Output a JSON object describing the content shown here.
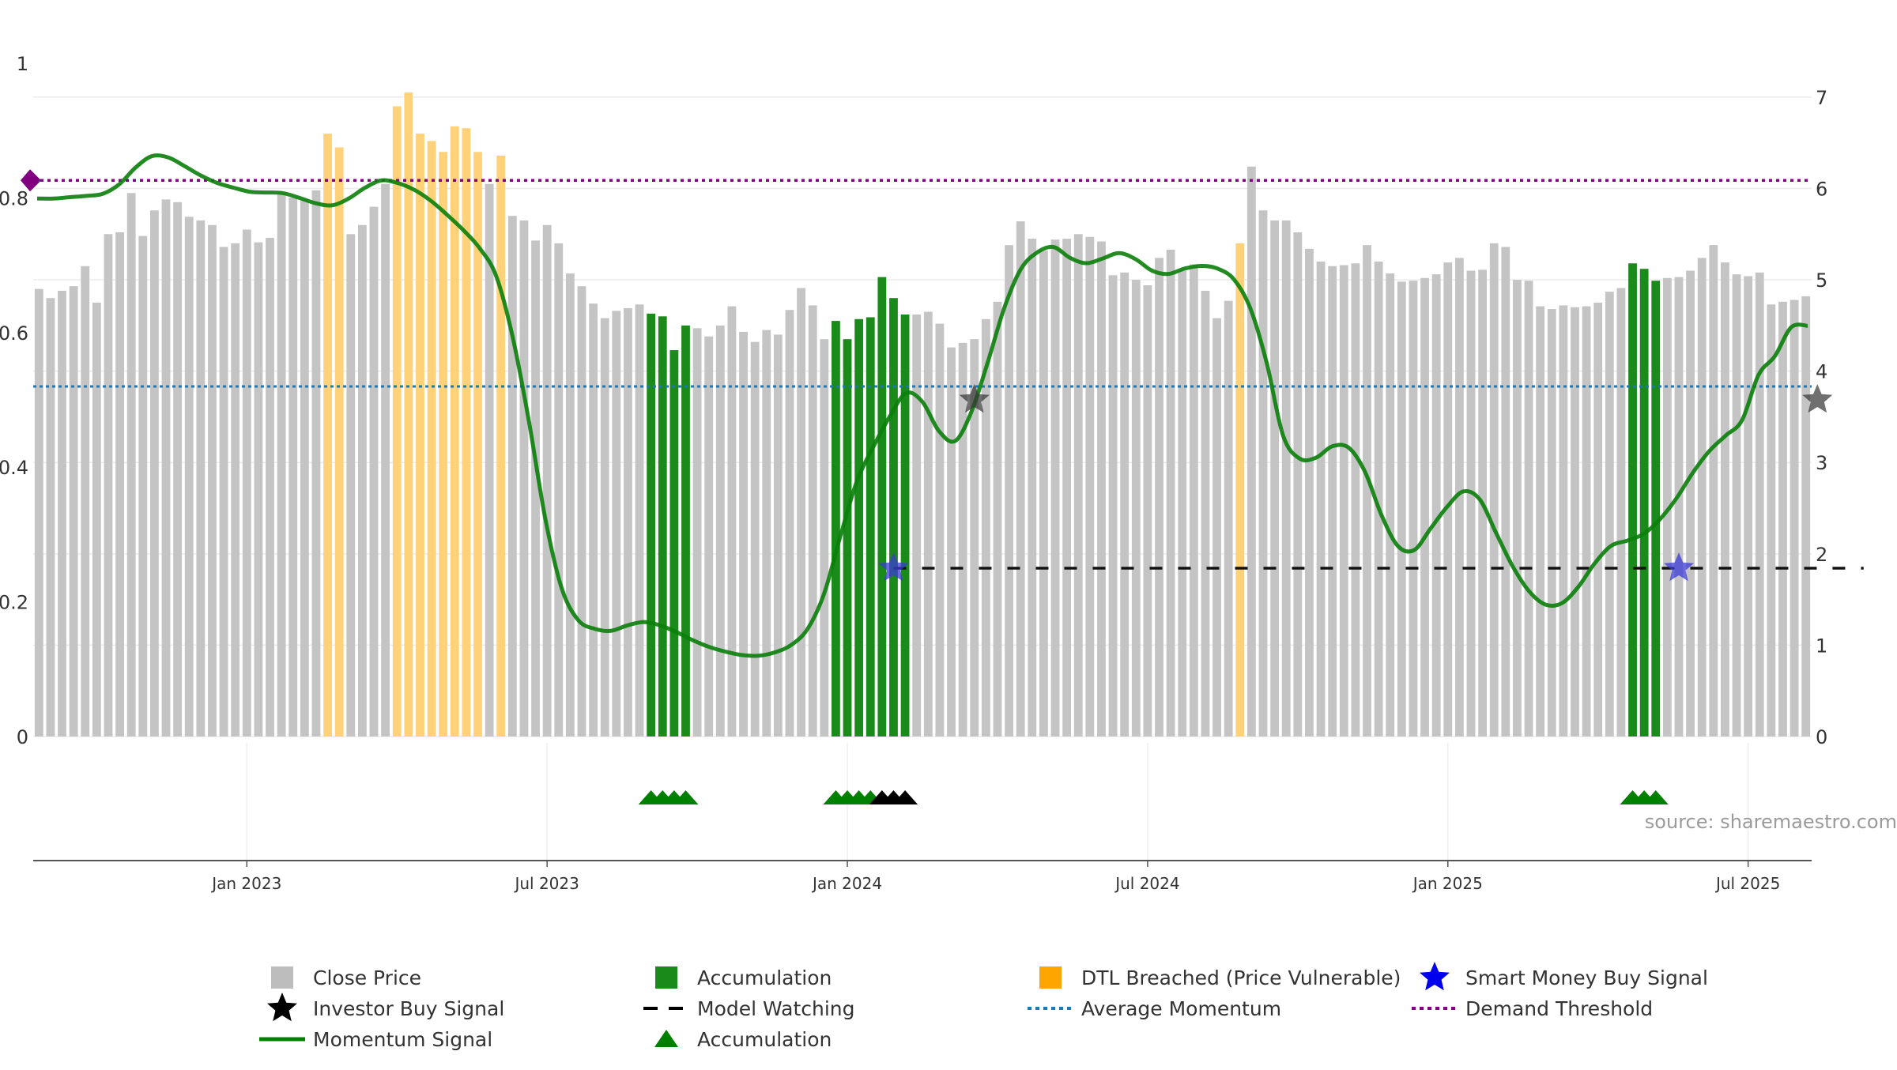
{
  "chart_data": {
    "type": "bar",
    "source": "source: sharemaestro.com",
    "left_axis": {
      "ticks": [
        0,
        0.2,
        0.4,
        0.6,
        0.8,
        1
      ],
      "tick_labels": [
        "0",
        "0.2",
        "0.4",
        "0.6",
        "0.8",
        "1"
      ],
      "ylim": [
        0,
        1
      ]
    },
    "right_axis": {
      "ticks": [
        0,
        1,
        2,
        3,
        4,
        5,
        6,
        7
      ],
      "tick_labels": [
        "0",
        "1",
        "2",
        "3",
        "4",
        "5",
        "6",
        "7"
      ],
      "ylim": [
        0,
        7.7
      ]
    },
    "x_ticks": [
      {
        "label": "Jan 2023",
        "index": 18
      },
      {
        "label": "Jul 2023",
        "index": 44
      },
      {
        "label": "Jan 2024",
        "index": 70
      },
      {
        "label": "Jul 2024",
        "index": 96
      },
      {
        "label": "Jan 2025",
        "index": 122
      },
      {
        "label": "Jul 2025",
        "index": 148
      }
    ],
    "close_price": [
      4.9,
      4.8,
      4.88,
      4.93,
      5.15,
      4.75,
      5.5,
      5.52,
      5.95,
      5.48,
      5.76,
      5.88,
      5.85,
      5.69,
      5.65,
      5.6,
      5.36,
      5.4,
      5.55,
      5.41,
      5.46,
      5.95,
      5.9,
      5.88,
      5.98,
      6.6,
      6.45,
      5.5,
      5.6,
      5.8,
      6.05,
      6.9,
      7.05,
      6.6,
      6.52,
      6.4,
      6.68,
      6.66,
      6.4,
      6.05,
      6.36,
      5.7,
      5.65,
      5.43,
      5.6,
      5.4,
      5.07,
      4.93,
      4.74,
      4.58,
      4.66,
      4.69,
      4.73,
      4.63,
      4.6,
      4.23,
      4.5,
      4.47,
      4.38,
      4.5,
      4.71,
      4.43,
      4.32,
      4.45,
      4.4,
      4.67,
      4.91,
      4.72,
      4.35,
      4.55,
      4.35,
      4.57,
      4.59,
      5.03,
      4.8,
      4.62,
      4.62,
      4.65,
      4.52,
      4.26,
      4.31,
      4.35,
      4.57,
      4.76,
      5.38,
      5.64,
      5.45,
      5.32,
      5.44,
      5.45,
      5.5,
      5.47,
      5.42,
      5.05,
      5.08,
      5.0,
      4.94,
      5.24,
      5.33,
      5.1,
      5.17,
      4.88,
      4.58,
      4.77,
      5.4,
      6.24,
      5.76,
      5.65,
      5.65,
      5.52,
      5.34,
      5.2,
      5.15,
      5.16,
      5.18,
      5.38,
      5.2,
      5.07,
      4.98,
      4.99,
      5.02,
      5.06,
      5.19,
      5.24,
      5.1,
      5.11,
      5.4,
      5.36,
      5.0,
      4.99,
      4.71,
      4.68,
      4.72,
      4.7,
      4.71,
      4.75,
      4.87,
      4.91,
      5.18,
      5.12,
      4.99,
      5.02,
      5.03,
      5.1,
      5.24,
      5.38,
      5.19,
      5.06,
      5.04,
      5.08,
      4.73,
      4.76,
      4.78,
      4.82
    ],
    "bar_category": [
      "p",
      "p",
      "p",
      "p",
      "p",
      "p",
      "p",
      "p",
      "p",
      "p",
      "p",
      "p",
      "p",
      "p",
      "p",
      "p",
      "p",
      "p",
      "p",
      "p",
      "p",
      "p",
      "p",
      "p",
      "p",
      "d",
      "d",
      "p",
      "p",
      "p",
      "p",
      "d",
      "d",
      "d",
      "d",
      "d",
      "d",
      "d",
      "d",
      "p",
      "d",
      "p",
      "p",
      "p",
      "p",
      "p",
      "p",
      "p",
      "p",
      "p",
      "p",
      "p",
      "p",
      "a",
      "a",
      "a",
      "a",
      "p",
      "p",
      "p",
      "p",
      "p",
      "p",
      "p",
      "p",
      "p",
      "p",
      "p",
      "p",
      "a",
      "a",
      "a",
      "a",
      "a",
      "a",
      "a",
      "p",
      "p",
      "p",
      "p",
      "p",
      "p",
      "p",
      "p",
      "p",
      "p",
      "p",
      "p",
      "p",
      "p",
      "p",
      "p",
      "p",
      "p",
      "p",
      "p",
      "p",
      "p",
      "p",
      "p",
      "p",
      "p",
      "p",
      "p",
      "d",
      "p",
      "p",
      "p",
      "p",
      "p",
      "p",
      "p",
      "p",
      "p",
      "p",
      "p",
      "p",
      "p",
      "p",
      "p",
      "p",
      "p",
      "p",
      "p",
      "p",
      "p",
      "p",
      "p",
      "p",
      "p",
      "p",
      "p",
      "p",
      "p",
      "p",
      "p",
      "p",
      "p",
      "a",
      "a",
      "a",
      "p",
      "p",
      "p",
      "p",
      "p",
      "p",
      "p",
      "p",
      "p",
      "p",
      "p",
      "p",
      "p",
      "p",
      "p",
      "p"
    ],
    "momentum_signal": [
      0.799,
      0.799,
      0.801,
      0.803,
      0.806,
      0.82,
      0.845,
      0.862,
      0.86,
      0.847,
      0.833,
      0.822,
      0.815,
      0.809,
      0.808,
      0.807,
      0.8,
      0.792,
      0.789,
      0.799,
      0.815,
      0.826,
      0.822,
      0.812,
      0.796,
      0.775,
      0.752,
      0.725,
      0.684,
      0.594,
      0.468,
      0.323,
      0.22,
      0.173,
      0.16,
      0.157,
      0.165,
      0.17,
      0.165,
      0.155,
      0.143,
      0.133,
      0.126,
      0.121,
      0.12,
      0.125,
      0.136,
      0.16,
      0.212,
      0.298,
      0.379,
      0.43,
      0.475,
      0.51,
      0.497,
      0.454,
      0.439,
      0.483,
      0.557,
      0.637,
      0.694,
      0.719,
      0.727,
      0.711,
      0.703,
      0.71,
      0.718,
      0.709,
      0.692,
      0.687,
      0.695,
      0.699,
      0.695,
      0.679,
      0.636,
      0.555,
      0.447,
      0.413,
      0.414,
      0.431,
      0.429,
      0.393,
      0.329,
      0.283,
      0.277,
      0.309,
      0.341,
      0.364,
      0.352,
      0.302,
      0.253,
      0.216,
      0.196,
      0.198,
      0.222,
      0.257,
      0.283,
      0.291,
      0.301,
      0.323,
      0.354,
      0.392,
      0.424,
      0.447,
      0.47,
      0.537,
      0.565,
      0.608,
      0.61
    ],
    "investor_buy_signals": [
      {
        "index": 81,
        "value": 0.5
      },
      {
        "index": 154,
        "value": 0.5
      }
    ],
    "smart_money_buy_signals": [
      {
        "index": 74,
        "value": 0.25
      },
      {
        "index": 142,
        "value": 0.25
      }
    ],
    "model_watching": {
      "from_index": 74,
      "to_index": 158,
      "value": 0.25
    },
    "average_momentum": 0.52,
    "demand_threshold": 0.826,
    "accumulation_markers": [
      {
        "index": 53,
        "color": "green"
      },
      {
        "index": 54,
        "color": "green"
      },
      {
        "index": 55,
        "color": "green"
      },
      {
        "index": 56,
        "color": "green"
      },
      {
        "index": 69,
        "color": "green"
      },
      {
        "index": 70,
        "color": "green"
      },
      {
        "index": 71,
        "color": "green"
      },
      {
        "index": 72,
        "color": "green"
      },
      {
        "index": 73,
        "color": "black"
      },
      {
        "index": 74,
        "color": "black"
      },
      {
        "index": 75,
        "color": "black"
      },
      {
        "index": 138,
        "color": "green"
      },
      {
        "index": 139,
        "color": "green"
      },
      {
        "index": 140,
        "color": "green"
      }
    ],
    "legend": [
      {
        "label": "Close Price",
        "symbol": "square",
        "color": "#bdbdbd"
      },
      {
        "label": "Accumulation",
        "symbol": "square",
        "color": "#1a8a1a"
      },
      {
        "label": "DTL Breached (Price Vulnerable)",
        "symbol": "square",
        "color": "#ffa500"
      },
      {
        "label": "Smart Money Buy Signal",
        "symbol": "star",
        "color": "#0000ee"
      },
      {
        "label": "Investor Buy Signal",
        "symbol": "star",
        "color": "#000000"
      },
      {
        "label": "Model Watching",
        "symbol": "dash",
        "color": "#000000"
      },
      {
        "label": "Average Momentum",
        "symbol": "dot",
        "color": "#1f77b4"
      },
      {
        "label": "Demand Threshold",
        "symbol": "dot",
        "color": "#800080"
      },
      {
        "label": "Momentum Signal",
        "symbol": "line",
        "color": "#008000"
      },
      {
        "label": "Accumulation",
        "symbol": "triangle",
        "color": "#008000"
      }
    ],
    "colors": {
      "price": "#c4c4c4",
      "accumulation": "#1a8a1a",
      "dtl": "#ffd27a",
      "momentum": "#0a7f0a",
      "average": "#1f77b4",
      "demand": "#800080",
      "smart_money": "#3b3bd6",
      "investor": "#333333"
    }
  }
}
